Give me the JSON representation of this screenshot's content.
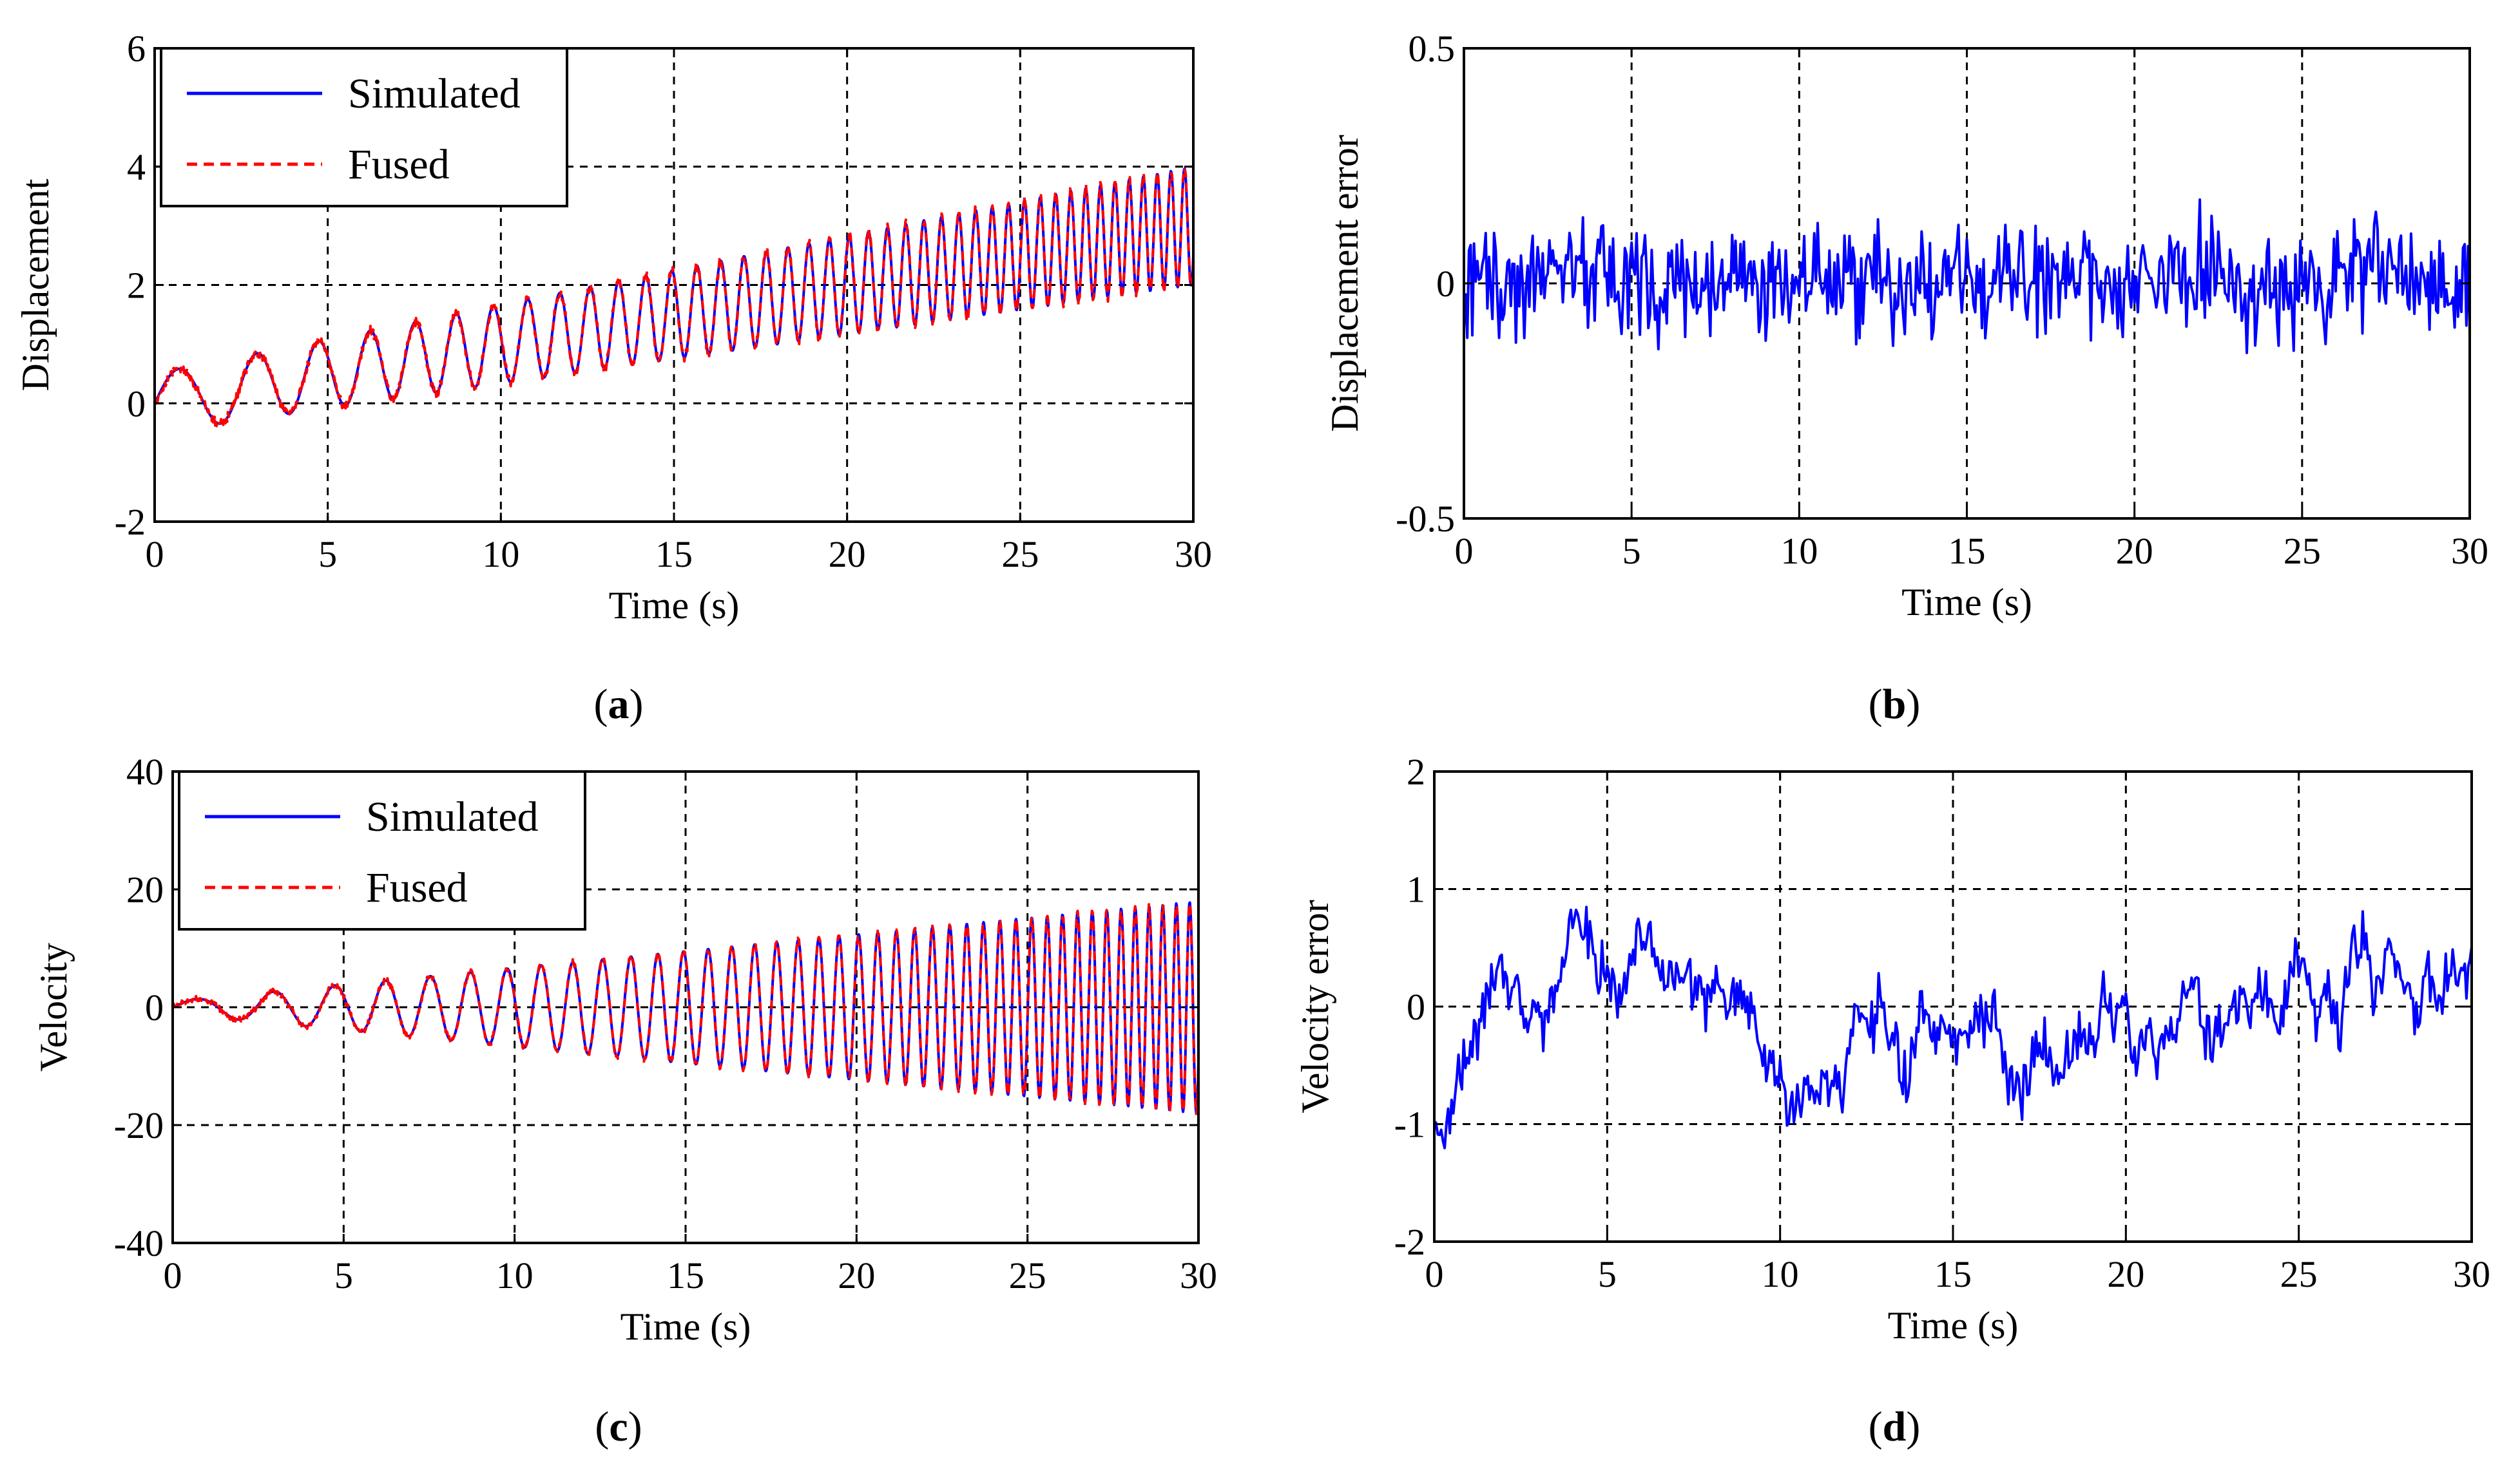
{
  "figure": {
    "panels": [
      "a",
      "b",
      "c",
      "d"
    ]
  },
  "colors": {
    "simulated": "#0000ff",
    "fused": "#ff0000",
    "grid": "#000000",
    "axes": "#000000"
  },
  "chart_data": [
    {
      "id": "a",
      "type": "line",
      "caption_letter": "a",
      "xlabel": "Time (s)",
      "ylabel": "Displacement",
      "xlim": [
        0,
        30
      ],
      "ylim": [
        -2,
        6
      ],
      "xticks": [
        0,
        5,
        10,
        15,
        20,
        25,
        30
      ],
      "yticks": [
        -2,
        0,
        2,
        4,
        6
      ],
      "xtick_labels": [
        "0",
        "5",
        "10",
        "15",
        "20",
        "25",
        "30"
      ],
      "ytick_labels": [
        "-2",
        "0",
        "2",
        "4",
        "6"
      ],
      "grid": true,
      "legend": {
        "position": "top-left",
        "entries": [
          "Simulated",
          "Fused"
        ]
      },
      "signal": {
        "kind": "oscillation",
        "amp_start": 0.5,
        "amp_end": 1.0,
        "trend_start": 0.0,
        "trend_end": 3.0,
        "freq_start": 0.35,
        "freq_end": 2.6
      },
      "series": [
        {
          "name": "Simulated",
          "style": "solid",
          "color_key": "simulated"
        },
        {
          "name": "Fused",
          "style": "dashed",
          "color_key": "fused",
          "noise": 0.08
        }
      ]
    },
    {
      "id": "b",
      "type": "line",
      "caption_letter": "b",
      "xlabel": "Time (s)",
      "ylabel": "Displacement error",
      "xlim": [
        0,
        30
      ],
      "ylim": [
        -0.5,
        0.5
      ],
      "xticks": [
        0,
        5,
        10,
        15,
        20,
        25,
        30
      ],
      "yticks": [
        -0.5,
        0,
        0.5
      ],
      "xtick_labels": [
        "0",
        "5",
        "10",
        "15",
        "20",
        "25",
        "30"
      ],
      "ytick_labels": [
        "-0.5",
        "0",
        "0.5"
      ],
      "grid": true,
      "signal": {
        "kind": "noise",
        "amplitude": 0.1,
        "range": [
          -0.3,
          0.3
        ],
        "points": 600
      },
      "series": [
        {
          "name": "Displacement error",
          "style": "solid",
          "color_key": "simulated"
        }
      ]
    },
    {
      "id": "c",
      "type": "line",
      "caption_letter": "c",
      "xlabel": "Time (s)",
      "ylabel": "Velocity",
      "xlim": [
        0,
        30
      ],
      "ylim": [
        -40,
        40
      ],
      "xticks": [
        0,
        5,
        10,
        15,
        20,
        25,
        30
      ],
      "yticks": [
        -40,
        -20,
        0,
        20,
        40
      ],
      "xtick_labels": [
        "0",
        "5",
        "10",
        "15",
        "20",
        "25",
        "30"
      ],
      "ytick_labels": [
        "-40",
        "-20",
        "0",
        "20",
        "40"
      ],
      "grid": true,
      "legend": {
        "position": "top-left",
        "entries": [
          "Simulated",
          "Fused"
        ]
      },
      "signal": {
        "kind": "oscillation",
        "amp_start": 1.0,
        "amp_end": 18.0,
        "trend_start": 0.0,
        "trend_end": 0.0,
        "freq_start": 0.35,
        "freq_end": 2.6
      },
      "series": [
        {
          "name": "Simulated",
          "style": "solid",
          "color_key": "simulated"
        },
        {
          "name": "Fused",
          "style": "dashed",
          "color_key": "fused",
          "noise": 0.5
        }
      ]
    },
    {
      "id": "d",
      "type": "line",
      "caption_letter": "d",
      "xlabel": "Time (s)",
      "ylabel": "Velocity error",
      "xlim": [
        0,
        30
      ],
      "ylim": [
        -2,
        2
      ],
      "xticks": [
        0,
        5,
        10,
        15,
        20,
        25,
        30
      ],
      "yticks": [
        -2,
        -1,
        0,
        1,
        2
      ],
      "xtick_labels": [
        "0",
        "5",
        "10",
        "15",
        "20",
        "25",
        "30"
      ],
      "ytick_labels": [
        "-2",
        "-1",
        "0",
        "1",
        "2"
      ],
      "grid": true,
      "signal": {
        "kind": "random-walk",
        "amplitude": 0.45,
        "range": [
          -1.35,
          1.2
        ],
        "points": 600
      },
      "series": [
        {
          "name": "Velocity error",
          "style": "solid",
          "color_key": "simulated"
        }
      ]
    }
  ]
}
